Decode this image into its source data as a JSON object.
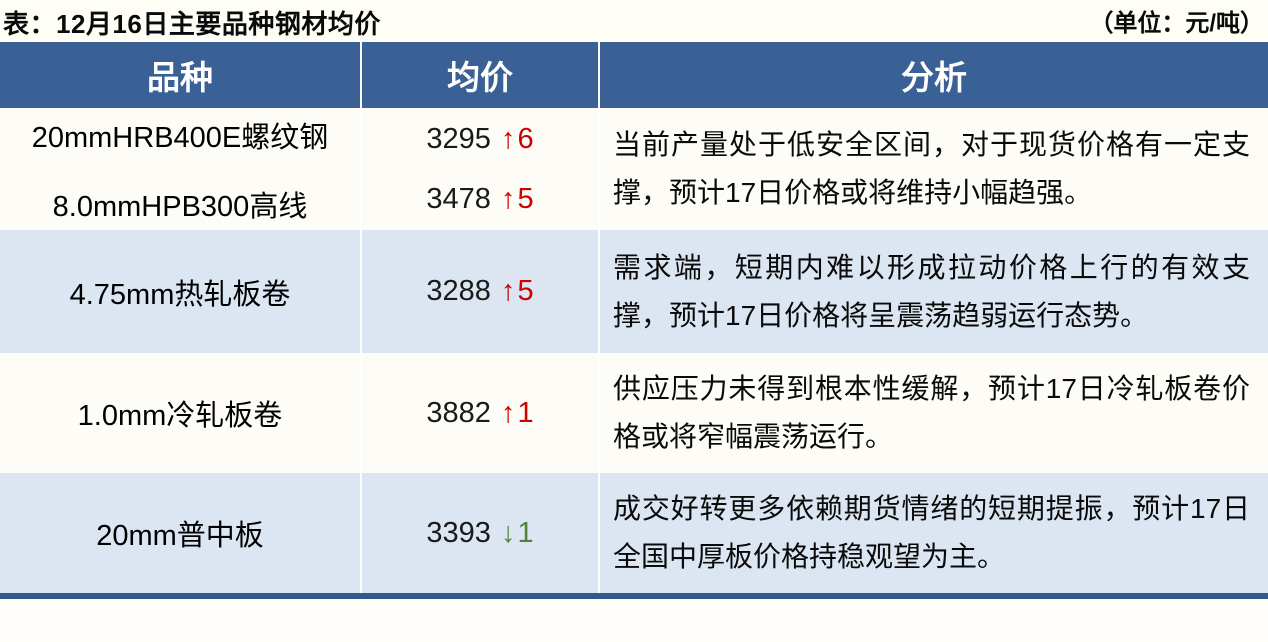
{
  "title": "表：12月16日主要品种钢材均价",
  "unit_note": "（单位：元/吨）",
  "table": {
    "headers": [
      "品种",
      "均价",
      "分析"
    ],
    "rows": [
      {
        "products": [
          {
            "name": "20mmHRB400E螺纹钢",
            "price": "3295",
            "arrow": "↑",
            "change": "6",
            "direction": "up"
          },
          {
            "name": "8.0mmHPB300高线",
            "price": "3478",
            "arrow": "↑",
            "change": "5",
            "direction": "up"
          }
        ],
        "analysis": "当前产量处于低安全区间，对于现货价格有一定支撑，预计17日价格或将维持小幅趋强。"
      },
      {
        "products": [
          {
            "name": "4.75mm热轧板卷",
            "price": "3288",
            "arrow": "↑",
            "change": "5",
            "direction": "up"
          }
        ],
        "analysis": "需求端，短期内难以形成拉动价格上行的有效支撑，预计17日价格将呈震荡趋弱运行态势。"
      },
      {
        "products": [
          {
            "name": "1.0mm冷轧板卷",
            "price": "3882",
            "arrow": "↑",
            "change": "1",
            "direction": "up"
          }
        ],
        "analysis": "供应压力未得到根本性缓解，预计17日冷轧板卷价格或将窄幅震荡运行。"
      },
      {
        "products": [
          {
            "name": "20mm普中板",
            "price": "3393",
            "arrow": "↓",
            "change": "1",
            "direction": "down"
          }
        ],
        "analysis": "成交好转更多依赖期货情绪的短期提振，预计17日全国中厚板价格持稳观望为主。"
      }
    ]
  },
  "colors": {
    "header_bg": "#3a6196",
    "alt_row_bg": "#dce6f2",
    "row_bg": "#fdfcf6",
    "up": "#cc0000",
    "down": "#548235",
    "bottom_bar": "#2f5b8c",
    "page_bg": "#fffef6"
  }
}
